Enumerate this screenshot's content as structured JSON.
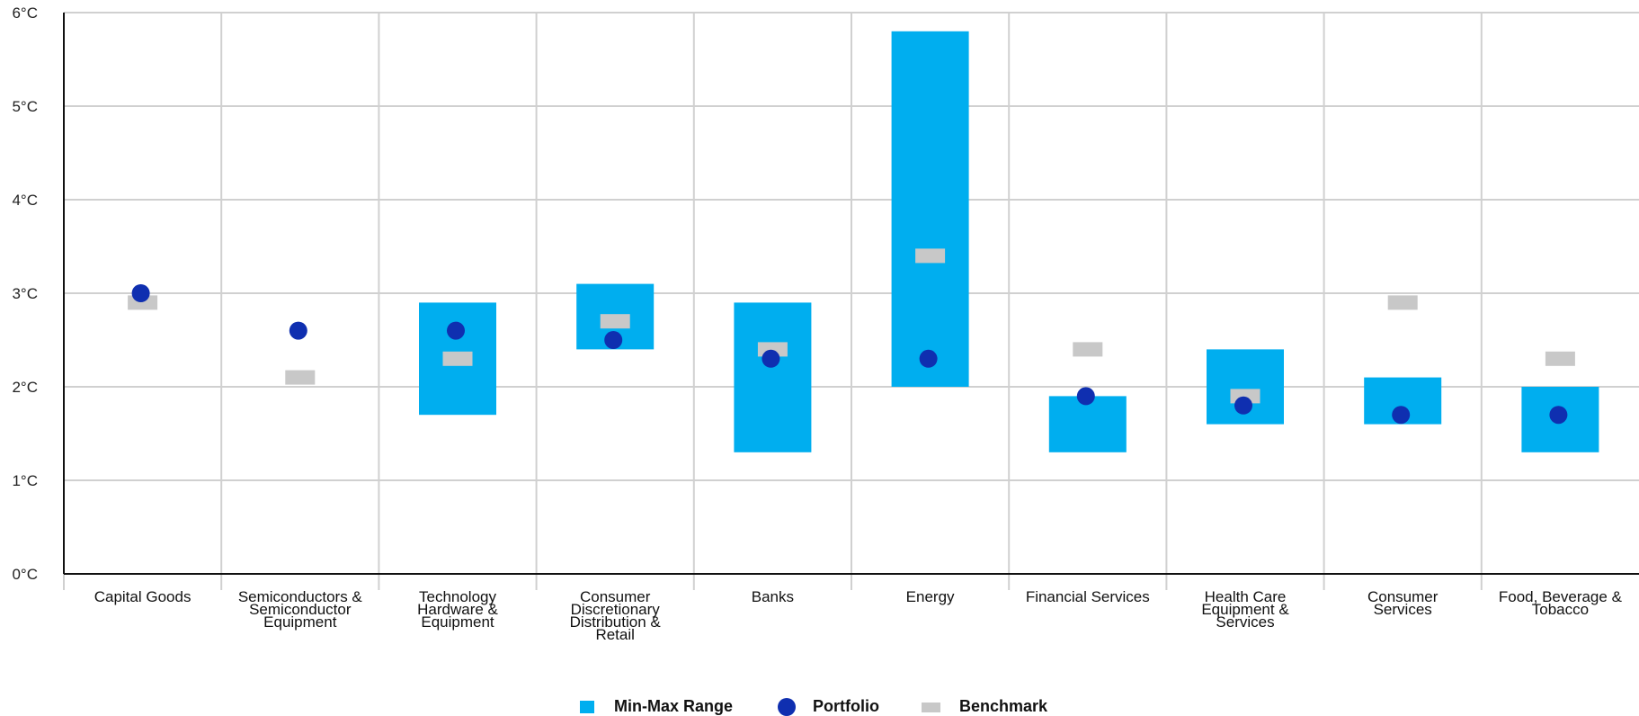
{
  "chart_data": {
    "type": "range-dot",
    "ylim": [
      0,
      6
    ],
    "y_ticks": [
      "0°C",
      "1°C",
      "2°C",
      "3°C",
      "4°C",
      "5°C",
      "6°C"
    ],
    "grid": true,
    "legend_position": "bottom-center",
    "categories": [
      "Capital Goods",
      "Semiconductors & Semiconductor Equipment",
      "Technology Hardware & Equipment",
      "Consumer Discretionary Distribution & Retail",
      "Banks",
      "Energy",
      "Financial Services",
      "Health Care Equipment & Services",
      "Consumer Services",
      "Food, Beverage & Tobacco"
    ],
    "category_label_lines": [
      [
        "Capital Goods"
      ],
      [
        "Semiconductors &",
        "Semiconductor",
        "Equipment"
      ],
      [
        "Technology",
        "Hardware &",
        "Equipment"
      ],
      [
        "Consumer",
        "Discretionary",
        "Distribution &",
        "Retail"
      ],
      [
        "Banks"
      ],
      [
        "Energy"
      ],
      [
        "Financial Services"
      ],
      [
        "Health Care",
        "Equipment &",
        "Services"
      ],
      [
        "Consumer",
        "Services"
      ],
      [
        "Food, Beverage &",
        "Tobacco"
      ]
    ],
    "series": [
      {
        "name": "Min-Max Range",
        "color": "#00aeef",
        "min": [
          3.0,
          2.6,
          1.7,
          2.4,
          1.3,
          2.0,
          1.3,
          1.6,
          1.6,
          1.3
        ],
        "max": [
          3.0,
          2.6,
          2.9,
          3.1,
          2.9,
          5.8,
          1.9,
          2.4,
          2.1,
          2.0
        ]
      },
      {
        "name": "Portfolio",
        "color": "#0f2fb0",
        "values": [
          3.0,
          2.6,
          2.6,
          2.5,
          2.3,
          2.3,
          1.9,
          1.8,
          1.7,
          1.7
        ]
      },
      {
        "name": "Benchmark",
        "color": "#c8c8c8",
        "values": [
          2.9,
          2.1,
          2.3,
          2.7,
          2.4,
          3.4,
          2.4,
          1.9,
          2.9,
          2.3
        ]
      }
    ]
  }
}
